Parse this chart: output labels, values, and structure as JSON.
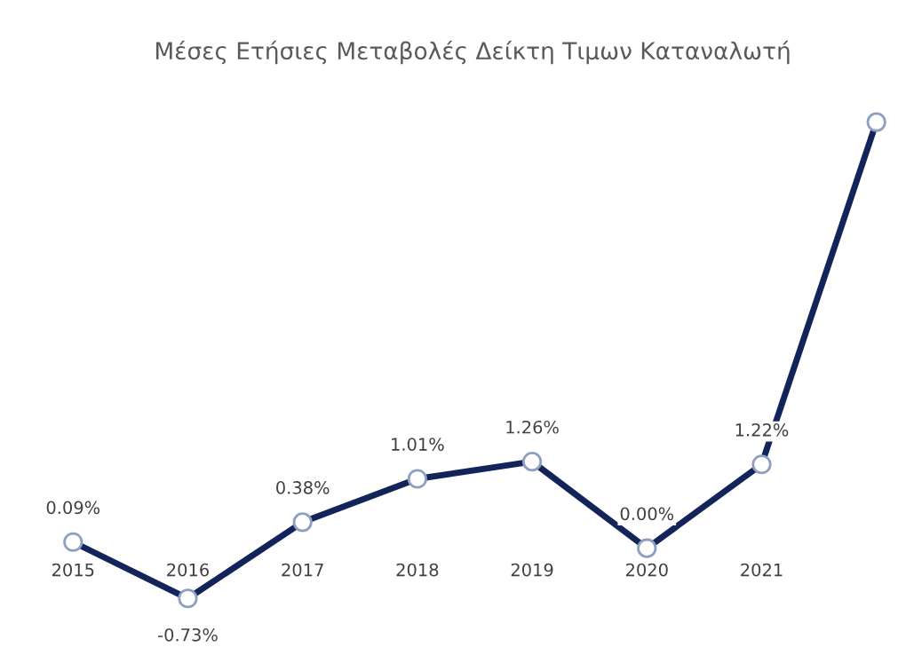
{
  "chart_data": {
    "type": "line",
    "title": "Μέσες Ετήσιες Μεταβολές Δείκτη Τιμων Καταναλωτή",
    "categories": [
      "2015",
      "2016",
      "2017",
      "2018",
      "2019",
      "2020",
      "2021",
      null
    ],
    "series": [
      {
        "color": "#13245a",
        "values": [
          0.09,
          -0.73,
          0.38,
          1.01,
          1.26,
          0.0,
          1.22,
          6.2
        ],
        "value_labels": [
          "0.09%",
          "-0.73%",
          "0.38%",
          "1.01%",
          "1.26%",
          "0.00%",
          "1.22%",
          null
        ]
      }
    ],
    "marker": "circle",
    "line_style": "solid",
    "grid": false,
    "legend": false
  }
}
